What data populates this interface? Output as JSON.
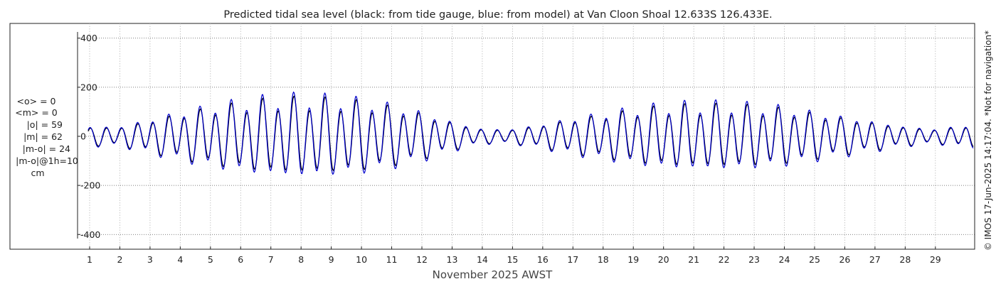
{
  "chart_data": {
    "type": "line",
    "title": "Predicted tidal sea level (black: from tide gauge, blue: from model) at Van Cloon Shoal 12.633S 126.433E.",
    "xlabel": "November 2025 AWST",
    "ylabel": "",
    "xlim": [
      0.6,
      30.3
    ],
    "ylim": [
      -460,
      460
    ],
    "x_ticks": [
      1,
      2,
      3,
      4,
      5,
      6,
      7,
      8,
      9,
      10,
      11,
      12,
      13,
      14,
      15,
      16,
      17,
      18,
      19,
      20,
      21,
      22,
      23,
      24,
      25,
      26,
      27,
      28,
      29
    ],
    "x_tick_labels": [
      "1",
      "2",
      "3",
      "4",
      "5",
      "6",
      "7",
      "8",
      "9",
      "10",
      "11",
      "12",
      "13",
      "14",
      "15",
      "16",
      "17",
      "18",
      "19",
      "20",
      "21",
      "22",
      "23",
      "24",
      "25",
      "26",
      "27",
      "28",
      "29"
    ],
    "y_ticks": [
      400,
      200,
      0,
      -200,
      -400
    ],
    "y_tick_labels": [
      "400",
      "200",
      "0",
      "-200",
      "-400"
    ],
    "grid": true,
    "series": [
      {
        "name": "from tide gauge",
        "color": "#000000",
        "daily_amplitude_cm": [
          40,
          40,
          70,
          100,
          125,
          145,
          160,
          165,
          160,
          150,
          130,
          100,
          60,
          30,
          30,
          50,
          75,
          95,
          115,
          130,
          135,
          135,
          130,
          120,
          100,
          80,
          60,
          40,
          30,
          45
        ]
      },
      {
        "name": "from model",
        "color": "#0000cc",
        "daily_amplitude_cm": [
          44,
          44,
          77,
          110,
          138,
          160,
          176,
          182,
          176,
          165,
          143,
          110,
          66,
          33,
          33,
          55,
          83,
          105,
          127,
          143,
          149,
          149,
          143,
          132,
          110,
          88,
          66,
          44,
          33,
          50
        ]
      }
    ]
  },
  "stats": [
    "<o> = 0",
    "<m> = 0",
    "|o| = 59",
    "|m| = 62",
    "|m-o| = 24",
    "|m-o|@1h=10",
    "cm"
  ],
  "credit": "© IMOS 17-Jun-2025 14:17:04. *Not for navigation*"
}
